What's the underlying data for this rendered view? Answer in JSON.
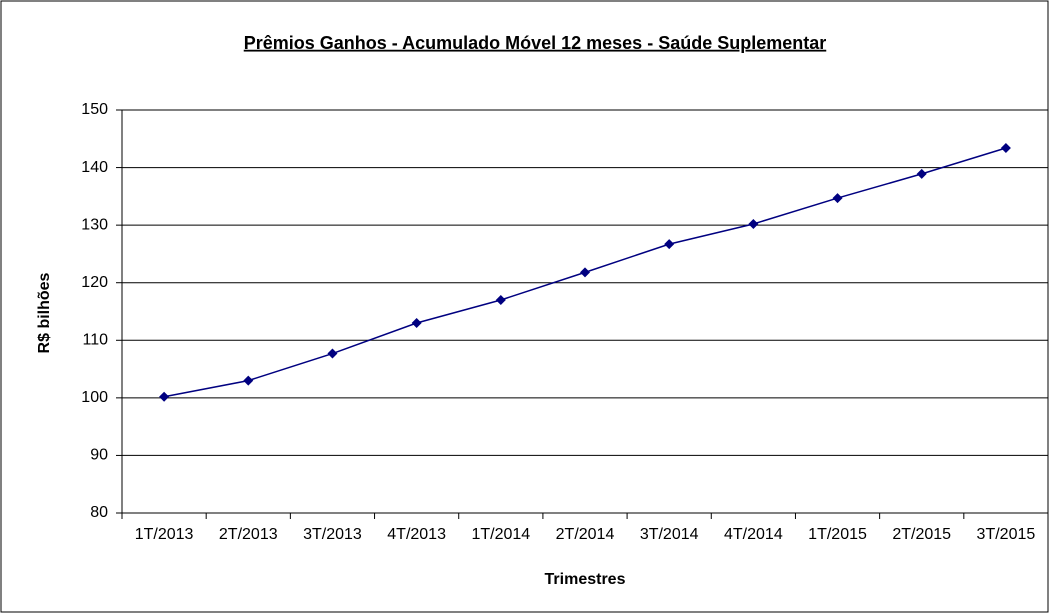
{
  "chart_data": {
    "type": "line",
    "title": "Prêmios Ganhos - Acumulado Móvel 12 meses - Saúde Suplementar",
    "xlabel": "Trimestres",
    "ylabel": "R$ bilhões",
    "categories": [
      "1T/2013",
      "2T/2013",
      "3T/2013",
      "4T/2013",
      "1T/2014",
      "2T/2014",
      "3T/2014",
      "4T/2014",
      "1T/2015",
      "2T/2015",
      "3T/2015"
    ],
    "series": [
      {
        "name": "Prêmios Ganhos",
        "color": "#000080",
        "values": [
          100.2,
          103,
          107.7,
          113,
          117,
          121.8,
          126.7,
          130.2,
          134.7,
          138.9,
          143.4
        ]
      }
    ],
    "ylim": [
      80,
      150
    ],
    "yticks": [
      80,
      90,
      100,
      110,
      120,
      130,
      140,
      150
    ],
    "grid": true
  }
}
